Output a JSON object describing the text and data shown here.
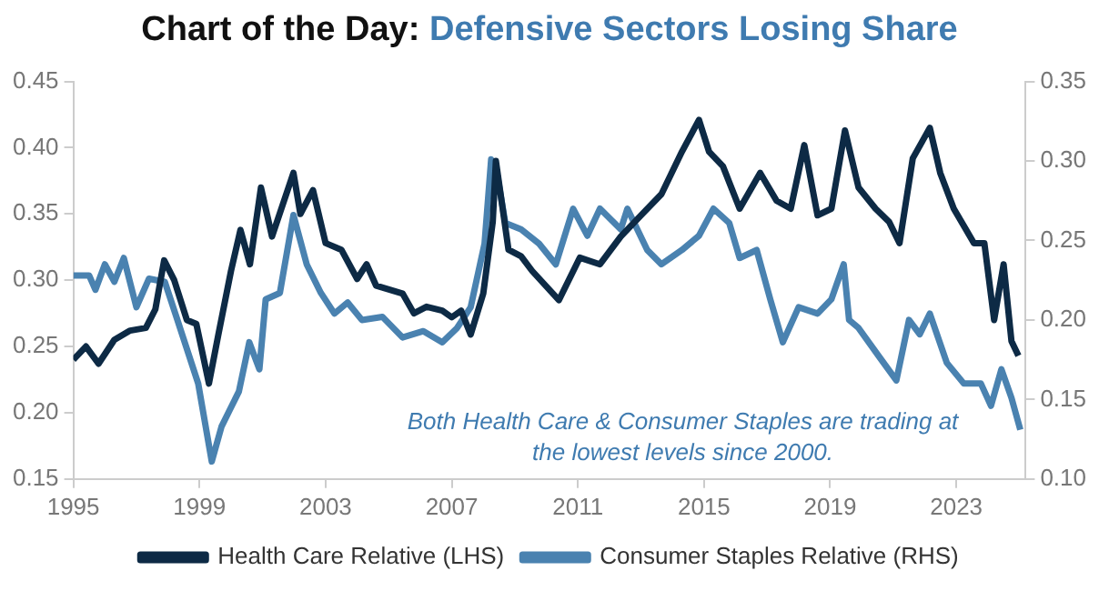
{
  "chart_data": {
    "type": "line",
    "title": "Chart of the Day: Defensive Sectors Losing Share",
    "xlim": [
      1995,
      2025.2
    ],
    "xticks": [
      1995,
      1999,
      2003,
      2007,
      2011,
      2015,
      2019,
      2023
    ],
    "ylim": [
      0.15,
      0.45
    ],
    "yticks": [
      {
        "value": 0.15,
        "label": "0.15"
      },
      {
        "value": 0.2,
        "label": "0.20"
      },
      {
        "value": 0.25,
        "label": "0.25"
      },
      {
        "value": 0.3,
        "label": "0.30"
      },
      {
        "value": 0.35,
        "label": "0.35"
      },
      {
        "value": 0.4,
        "label": "0.40"
      },
      {
        "value": 0.45,
        "label": "0.45"
      }
    ],
    "y2lim": [
      0.1,
      0.35
    ],
    "y2ticks": [
      {
        "value": 0.1,
        "label": "0.10"
      },
      {
        "value": 0.15,
        "label": "0.15"
      },
      {
        "value": 0.2,
        "label": "0.20"
      },
      {
        "value": 0.25,
        "label": "0.25"
      },
      {
        "value": 0.3,
        "label": "0.30"
      },
      {
        "value": 0.35,
        "label": "0.35"
      }
    ],
    "legend": "bottom",
    "annotations": [
      "Both Health Care & Consumer Staples are trading at the lowest levels since 2000."
    ],
    "series": [
      {
        "name": "Health Care Relative (LHS)",
        "color": "#0d2a45",
        "x": [
          1995.0,
          1995.4,
          1995.8,
          1996.3,
          1996.8,
          1997.3,
          1997.6,
          1997.88,
          1998.2,
          1998.6,
          1998.9,
          1999.3,
          1999.6,
          2000.0,
          2000.3,
          2000.6,
          2000.95,
          2001.3,
          2001.98,
          2002.2,
          2002.6,
          2003.0,
          2003.5,
          2004.0,
          2004.3,
          2004.6,
          2005.44,
          2005.8,
          2006.2,
          2006.7,
          2007.0,
          2007.3,
          2007.6,
          2008.0,
          2008.3,
          2008.4,
          2008.8,
          2009.2,
          2009.55,
          2010.4,
          2011.06,
          2011.7,
          2012.36,
          2013.0,
          2013.65,
          2014.3,
          2014.84,
          2015.16,
          2015.6,
          2016.13,
          2016.78,
          2017.3,
          2017.75,
          2018.18,
          2018.6,
          2019.04,
          2019.47,
          2019.9,
          2020.44,
          2020.87,
          2021.2,
          2021.62,
          2022.16,
          2022.49,
          2022.92,
          2023.56,
          2023.89,
          2024.2,
          2024.5,
          2024.75,
          2024.97
        ],
        "values": [
          0.24,
          0.25,
          0.237,
          0.255,
          0.262,
          0.264,
          0.278,
          0.315,
          0.3,
          0.27,
          0.267,
          0.222,
          0.259,
          0.307,
          0.338,
          0.312,
          0.37,
          0.333,
          0.381,
          0.35,
          0.368,
          0.328,
          0.323,
          0.301,
          0.312,
          0.296,
          0.29,
          0.275,
          0.28,
          0.277,
          0.272,
          0.277,
          0.259,
          0.29,
          0.344,
          0.39,
          0.323,
          0.318,
          0.307,
          0.285,
          0.317,
          0.312,
          0.333,
          0.349,
          0.365,
          0.397,
          0.421,
          0.397,
          0.386,
          0.354,
          0.381,
          0.36,
          0.354,
          0.402,
          0.349,
          0.354,
          0.413,
          0.37,
          0.354,
          0.344,
          0.328,
          0.392,
          0.415,
          0.381,
          0.354,
          0.328,
          0.328,
          0.27,
          0.312,
          0.254,
          0.243
        ]
      },
      {
        "name": "Consumer Staples Relative (RHS)",
        "color": "#4a82b0",
        "axis": "y2",
        "x": [
          1995.0,
          1995.5,
          1995.7,
          1996.0,
          1996.3,
          1996.6,
          1997.0,
          1997.4,
          1997.9,
          1998.3,
          1998.96,
          1999.39,
          1999.7,
          2000.25,
          2000.58,
          2000.9,
          2001.1,
          2001.55,
          2001.98,
          2002.4,
          2002.85,
          2003.28,
          2003.7,
          2004.15,
          2004.8,
          2005.44,
          2006.1,
          2006.7,
          2007.17,
          2007.6,
          2008.04,
          2008.25,
          2008.47,
          2008.7,
          2009.2,
          2009.77,
          2010.3,
          2010.85,
          2011.3,
          2011.7,
          2012.36,
          2012.57,
          2013.2,
          2013.65,
          2014.3,
          2014.84,
          2015.3,
          2015.8,
          2016.13,
          2016.67,
          2017.1,
          2017.5,
          2018.0,
          2018.6,
          2019.04,
          2019.43,
          2019.6,
          2019.9,
          2020.55,
          2021.1,
          2021.5,
          2021.84,
          2022.16,
          2022.7,
          2023.24,
          2023.78,
          2024.1,
          2024.43,
          2024.75,
          2025.03
        ],
        "values": [
          0.228,
          0.228,
          0.219,
          0.235,
          0.224,
          0.239,
          0.208,
          0.226,
          0.224,
          0.2,
          0.16,
          0.111,
          0.133,
          0.155,
          0.186,
          0.169,
          0.213,
          0.217,
          0.266,
          0.235,
          0.217,
          0.204,
          0.211,
          0.2,
          0.202,
          0.189,
          0.193,
          0.186,
          0.195,
          0.208,
          0.248,
          0.301,
          0.288,
          0.261,
          0.257,
          0.248,
          0.235,
          0.27,
          0.253,
          0.27,
          0.257,
          0.27,
          0.244,
          0.235,
          0.244,
          0.253,
          0.27,
          0.261,
          0.239,
          0.244,
          0.213,
          0.186,
          0.208,
          0.204,
          0.213,
          0.235,
          0.2,
          0.195,
          0.177,
          0.162,
          0.2,
          0.191,
          0.204,
          0.173,
          0.16,
          0.16,
          0.146,
          0.169,
          0.151,
          0.131
        ]
      }
    ]
  }
}
